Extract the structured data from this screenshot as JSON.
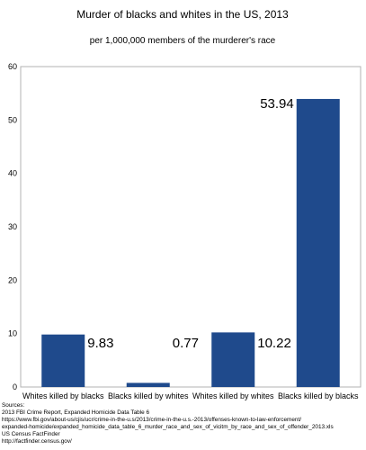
{
  "chart_data": {
    "type": "bar",
    "title": "Murder of blacks and whites in the US, 2013",
    "subtitle": "per 1,000,000 members of the murderer's race",
    "categories": [
      "Whites killed by blacks",
      "Blacks killed by whites",
      "Whites killed by whites",
      "Blacks killed by blacks"
    ],
    "values": [
      9.83,
      0.77,
      10.22,
      53.94
    ],
    "data_labels": [
      "9.83",
      "0.77",
      "10.22",
      "53.94"
    ],
    "ylim": [
      0,
      60
    ],
    "yticks": [
      0,
      10,
      20,
      30,
      40,
      50,
      60
    ],
    "grid": false,
    "legend": "none",
    "bar_color": "#1f4a8c"
  },
  "sources": {
    "heading": "Sources:",
    "lines": [
      "2013 FBI Crime Report, Expanded Homicide Data Table 6",
      "https://www.fbi.gov/about-us/cjis/ucr/crime-in-the-u.s/2013/crime-in-the-u.s.-2013/offenses-known-to-law-enforcement/",
      "expanded-homicide/expanded_homicide_data_table_6_murder_race_and_sex_of_vicitm_by_race_and_sex_of_offender_2013.xls",
      "US Census FactFinder",
      "http://factfinder.census.gov/"
    ]
  }
}
